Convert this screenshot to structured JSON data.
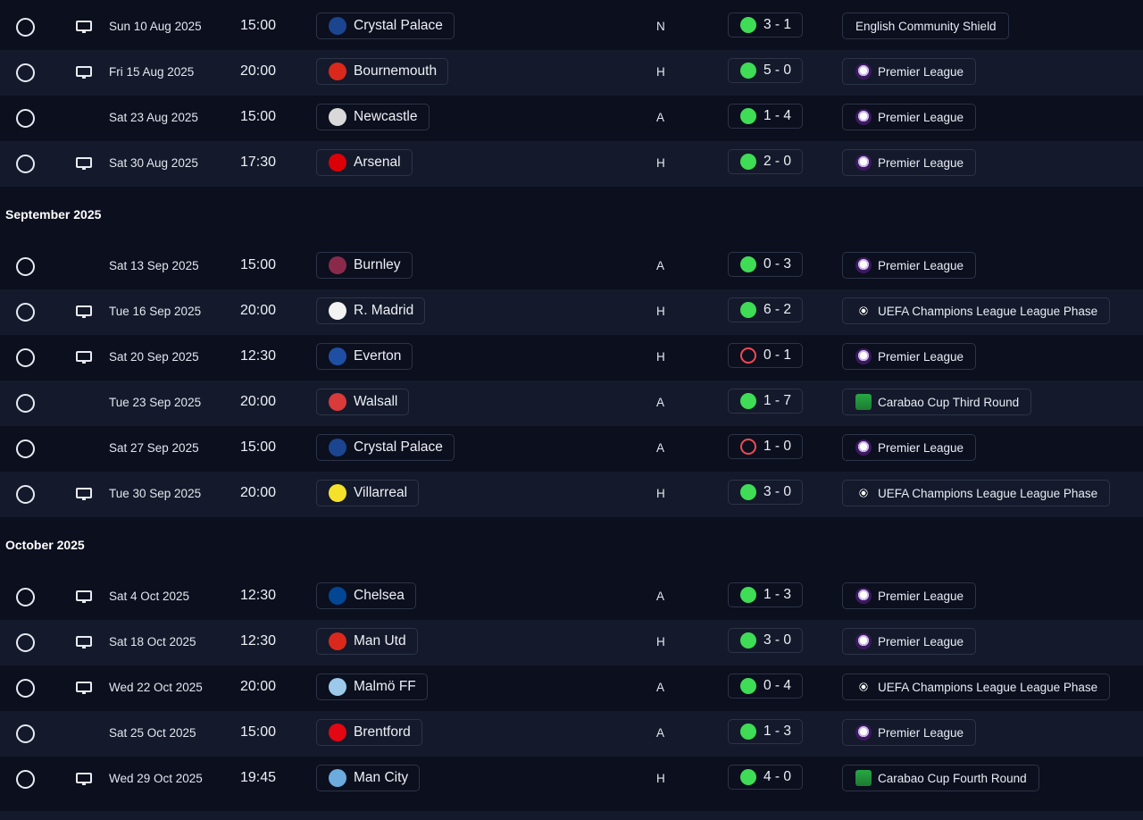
{
  "sections": [
    {
      "title": "",
      "matches": [
        {
          "date": "Sun 10 Aug 2025",
          "time": "15:00",
          "tv": true,
          "opponent": "Crystal Palace",
          "crest": "crystal-palace",
          "crest_color": "#1b458f",
          "venue": "N",
          "result": "win",
          "score": "3 - 1",
          "competition": "English Community Shield",
          "comp_icon": "none"
        },
        {
          "date": "Fri 15 Aug 2025",
          "time": "20:00",
          "tv": true,
          "opponent": "Bournemouth",
          "crest": "bournemouth",
          "crest_color": "#da291c",
          "venue": "H",
          "result": "win",
          "score": "5 - 0",
          "competition": "Premier League",
          "comp_icon": "pl"
        },
        {
          "date": "Sat 23 Aug 2025",
          "time": "15:00",
          "tv": false,
          "opponent": "Newcastle",
          "crest": "newcastle",
          "crest_color": "#d9d9d9",
          "venue": "A",
          "result": "win",
          "score": "1 - 4",
          "competition": "Premier League",
          "comp_icon": "pl"
        },
        {
          "date": "Sat 30 Aug 2025",
          "time": "17:30",
          "tv": true,
          "opponent": "Arsenal",
          "crest": "arsenal",
          "crest_color": "#db0007",
          "venue": "H",
          "result": "win",
          "score": "2 - 0",
          "competition": "Premier League",
          "comp_icon": "pl"
        }
      ]
    },
    {
      "title": "September 2025",
      "matches": [
        {
          "date": "Sat 13 Sep 2025",
          "time": "15:00",
          "tv": false,
          "opponent": "Burnley",
          "crest": "burnley",
          "crest_color": "#8a2a4b",
          "venue": "A",
          "result": "win",
          "score": "0 - 3",
          "competition": "Premier League",
          "comp_icon": "pl"
        },
        {
          "date": "Tue 16 Sep 2025",
          "time": "20:00",
          "tv": true,
          "opponent": "R. Madrid",
          "crest": "real-madrid",
          "crest_color": "#f2f2f2",
          "venue": "H",
          "result": "win",
          "score": "6 - 2",
          "competition": "UEFA Champions League League Phase",
          "comp_icon": "ucl"
        },
        {
          "date": "Sat 20 Sep 2025",
          "time": "12:30",
          "tv": true,
          "opponent": "Everton",
          "crest": "everton",
          "crest_color": "#1f4fa3",
          "venue": "H",
          "result": "loss",
          "score": "0 - 1",
          "competition": "Premier League",
          "comp_icon": "pl"
        },
        {
          "date": "Tue 23 Sep 2025",
          "time": "20:00",
          "tv": false,
          "opponent": "Walsall",
          "crest": "walsall",
          "crest_color": "#d93a3a",
          "venue": "A",
          "result": "win",
          "score": "1 - 7",
          "competition": "Carabao Cup Third Round",
          "comp_icon": "cup"
        },
        {
          "date": "Sat 27 Sep 2025",
          "time": "15:00",
          "tv": false,
          "opponent": "Crystal Palace",
          "crest": "crystal-palace",
          "crest_color": "#1b458f",
          "venue": "A",
          "result": "loss",
          "score": "1 - 0",
          "competition": "Premier League",
          "comp_icon": "pl"
        },
        {
          "date": "Tue 30 Sep 2025",
          "time": "20:00",
          "tv": true,
          "opponent": "Villarreal",
          "crest": "villarreal",
          "crest_color": "#f5e12a",
          "venue": "H",
          "result": "win",
          "score": "3 - 0",
          "competition": "UEFA Champions League League Phase",
          "comp_icon": "ucl"
        }
      ]
    },
    {
      "title": "October 2025",
      "matches": [
        {
          "date": "Sat 4 Oct 2025",
          "time": "12:30",
          "tv": true,
          "opponent": "Chelsea",
          "crest": "chelsea",
          "crest_color": "#034694",
          "venue": "A",
          "result": "win",
          "score": "1 - 3",
          "competition": "Premier League",
          "comp_icon": "pl"
        },
        {
          "date": "Sat 18 Oct 2025",
          "time": "12:30",
          "tv": true,
          "opponent": "Man Utd",
          "crest": "man-utd",
          "crest_color": "#da291c",
          "venue": "H",
          "result": "win",
          "score": "3 - 0",
          "competition": "Premier League",
          "comp_icon": "pl"
        },
        {
          "date": "Wed 22 Oct 2025",
          "time": "20:00",
          "tv": true,
          "opponent": "Malmö FF",
          "crest": "malmo",
          "crest_color": "#9cc9ea",
          "venue": "A",
          "result": "win",
          "score": "0 - 4",
          "competition": "UEFA Champions League League Phase",
          "comp_icon": "ucl"
        },
        {
          "date": "Sat 25 Oct 2025",
          "time": "15:00",
          "tv": false,
          "opponent": "Brentford",
          "crest": "brentford",
          "crest_color": "#e30613",
          "venue": "A",
          "result": "win",
          "score": "1 - 3",
          "competition": "Premier League",
          "comp_icon": "pl"
        },
        {
          "date": "Wed 29 Oct 2025",
          "time": "19:45",
          "tv": true,
          "opponent": "Man City",
          "crest": "man-city",
          "crest_color": "#6cabdd",
          "venue": "H",
          "result": "win",
          "score": "4 - 0",
          "competition": "Carabao Cup Fourth Round",
          "comp_icon": "cup"
        }
      ]
    }
  ]
}
